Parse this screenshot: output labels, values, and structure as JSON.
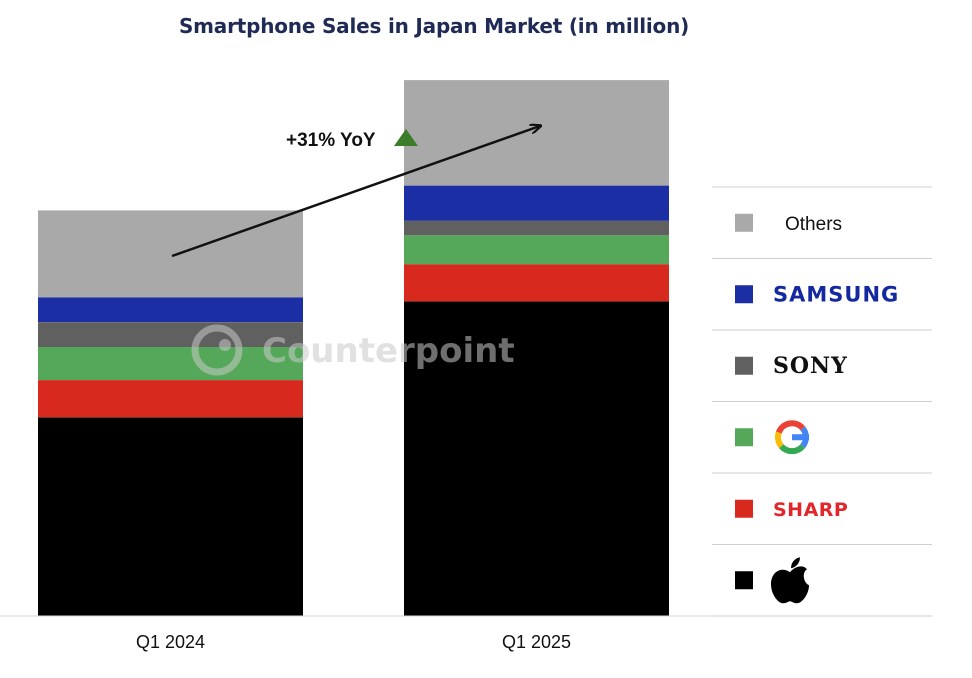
{
  "chart_data": {
    "type": "bar",
    "stacked": true,
    "title": "Smartphone Sales in Japan Market (in million)",
    "xlabel": "",
    "ylabel": "",
    "categories": [
      "Q1 2024",
      "Q1 2025"
    ],
    "series": [
      {
        "name": "Apple",
        "legend_icon": "apple-logo-icon",
        "color": "#000000",
        "values": [
          4.8,
          7.6
        ]
      },
      {
        "name": "SHARP",
        "color": "#d8291f",
        "values": [
          0.9,
          0.9
        ]
      },
      {
        "name": "Google",
        "legend_icon": "google-g-logo-icon",
        "color": "#55a85a",
        "values": [
          0.8,
          0.7
        ]
      },
      {
        "name": "SONY",
        "color": "#606060",
        "values": [
          0.6,
          0.35
        ]
      },
      {
        "name": "SAMSUNG",
        "color": "#1b2ea3",
        "values": [
          0.6,
          0.85
        ]
      },
      {
        "name": "Others",
        "color": "#a9a9a9",
        "values": [
          2.1,
          2.55
        ]
      }
    ],
    "ylim": [
      0,
      13
    ],
    "grid": false,
    "legend_position": "right",
    "annotation": {
      "text": "+31% YoY",
      "arrow": "up",
      "arrow_color": "#3b7d2b"
    }
  },
  "watermark": "Counterpoint"
}
